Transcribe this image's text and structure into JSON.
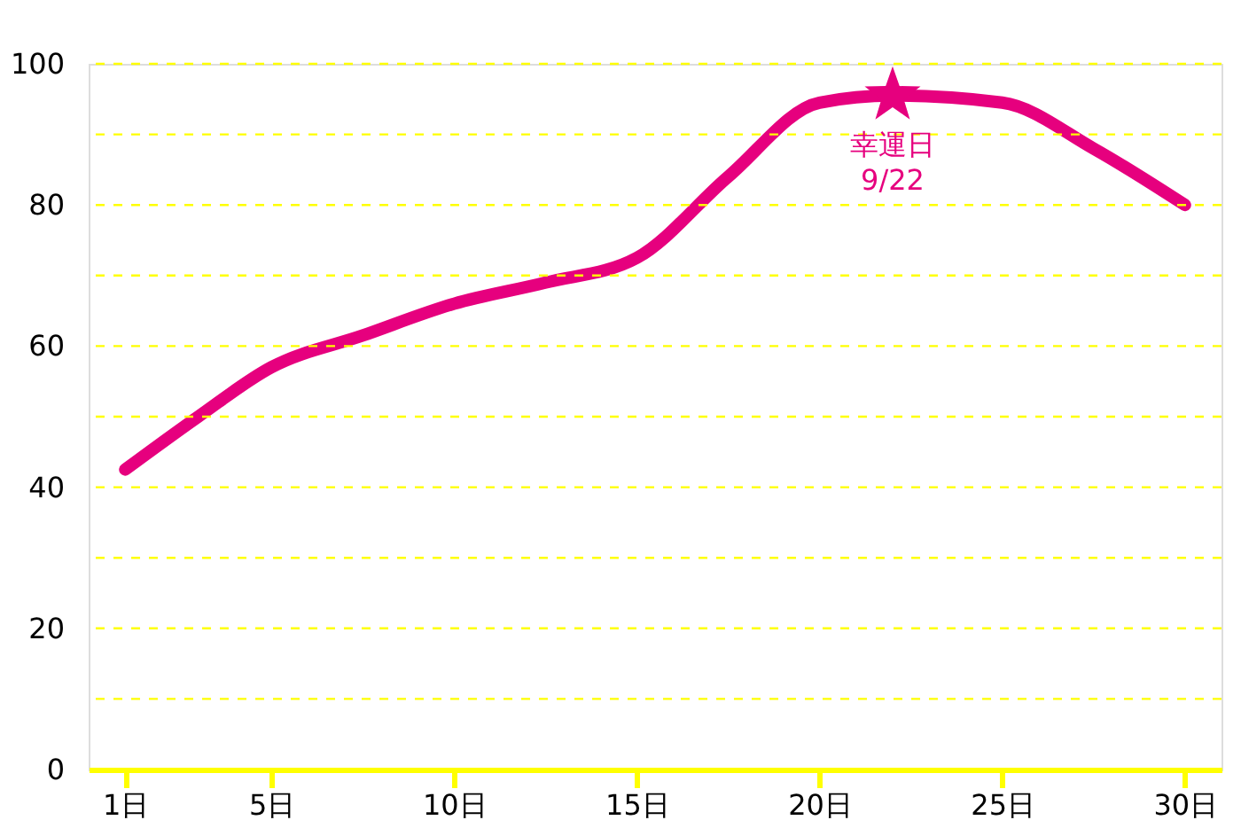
{
  "chart_data": {
    "type": "line",
    "x": [
      1,
      3,
      5,
      7.5,
      10,
      12.5,
      15,
      17.5,
      20,
      22,
      25,
      27.5,
      30
    ],
    "series": [
      {
        "color": "#e6007e",
        "values": [
          42.5,
          50,
          57,
          61.5,
          66,
          69,
          72.5,
          84,
          94.5,
          95.5,
          94.5,
          88,
          80
        ]
      }
    ],
    "xlim": [
      0,
      31
    ],
    "xticks": [
      {
        "value": 1,
        "label": "1日"
      },
      {
        "value": 5,
        "label": "5日"
      },
      {
        "value": 10,
        "label": "10日"
      },
      {
        "value": 15,
        "label": "15日"
      },
      {
        "value": 20,
        "label": "20日"
      },
      {
        "value": 25,
        "label": "25日"
      },
      {
        "value": 30,
        "label": "30日"
      }
    ],
    "ylim": [
      0,
      100
    ],
    "yticks": [
      0,
      {
        "value": 10,
        "label": null
      },
      20,
      {
        "value": 30,
        "label": null
      },
      40,
      {
        "value": 50,
        "label": null
      },
      60,
      {
        "value": 70,
        "label": null
      },
      80,
      {
        "value": 90,
        "label": null
      },
      100
    ],
    "annotations": [
      {
        "text": "幸運日\n9/22",
        "x": 22,
        "y": 95.5
      }
    ],
    "grid": "y",
    "marker": "none",
    "line_style": "solid"
  }
}
